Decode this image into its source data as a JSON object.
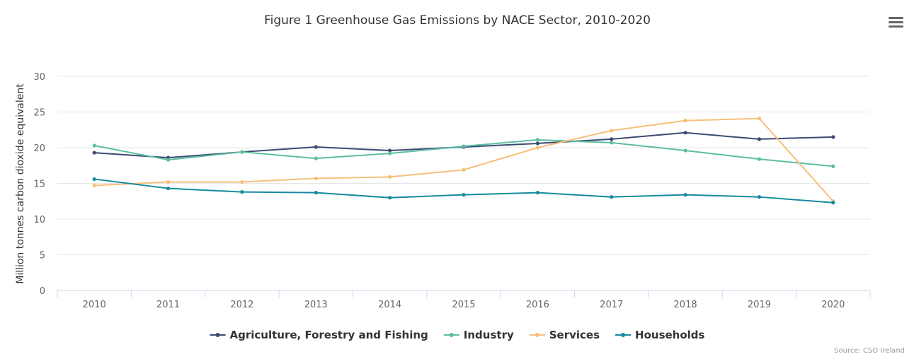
{
  "chart_data": {
    "type": "line",
    "title": "Figure 1 Greenhouse Gas Emissions by NACE Sector, 2010-2020",
    "xlabel": "",
    "ylabel": "Million tonnes carbon dioxide equivalent",
    "categories": [
      "2010",
      "2011",
      "2012",
      "2013",
      "2014",
      "2015",
      "2016",
      "2017",
      "2018",
      "2019",
      "2020"
    ],
    "ylim": [
      0,
      30
    ],
    "yticks": [
      0,
      5,
      10,
      15,
      20,
      25,
      30
    ],
    "grid": true,
    "legend_position": "bottom-center",
    "series": [
      {
        "name": "Agriculture, Forestry and Fishing",
        "color": "#3b4a72",
        "values": [
          19.3,
          18.6,
          19.4,
          20.1,
          19.6,
          20.1,
          20.6,
          21.2,
          22.1,
          21.2,
          21.5
        ]
      },
      {
        "name": "Industry",
        "color": "#5cbea0",
        "values": [
          20.3,
          18.3,
          19.4,
          18.5,
          19.2,
          20.2,
          21.1,
          20.7,
          19.6,
          18.4,
          17.4
        ]
      },
      {
        "name": "Services",
        "color": "#f6c07a",
        "values": [
          14.7,
          15.2,
          15.2,
          15.7,
          15.9,
          16.9,
          20.0,
          22.4,
          23.8,
          24.1,
          12.5
        ]
      },
      {
        "name": "Households",
        "color": "#148a9f",
        "values": [
          15.6,
          14.3,
          13.8,
          13.7,
          13.0,
          13.4,
          13.7,
          13.1,
          13.4,
          13.1,
          12.3
        ]
      }
    ]
  },
  "credit": "Source: CSO Ireland",
  "menu": {
    "icon": "hamburger-menu-icon"
  }
}
